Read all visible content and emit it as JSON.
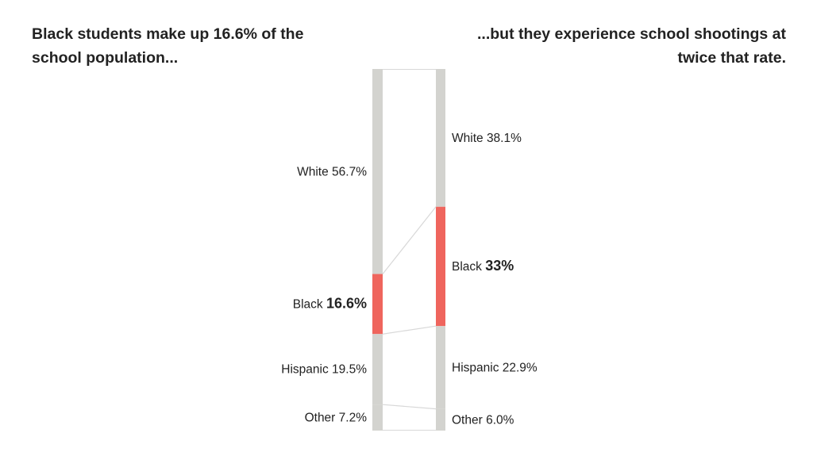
{
  "chart_data": {
    "type": "stacked-bar-comparison",
    "title_left": "Black students make up 16.6% of the school population...",
    "title_right": "...but they experience school shootings at twice that rate.",
    "categories": [
      "White",
      "Black",
      "Hispanic",
      "Other"
    ],
    "series": [
      {
        "values": [
          56.7,
          16.6,
          19.5,
          7.2
        ],
        "labels": [
          "56.7%",
          "16.6%",
          "19.5%",
          "7.2%"
        ]
      },
      {
        "values": [
          38.1,
          33,
          22.9,
          6.0
        ],
        "labels": [
          "38.1%",
          "33%",
          "22.9%",
          "6.0%"
        ]
      }
    ],
    "highlight_category": "Black",
    "colors": {
      "base": "#d3d3cf",
      "highlight": "#ef655d",
      "connector": "#d8d8d8"
    }
  }
}
